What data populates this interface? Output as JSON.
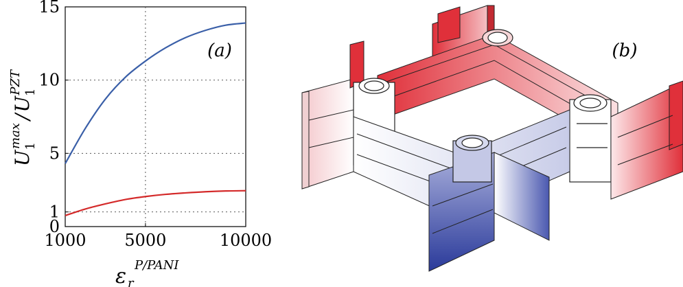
{
  "chart_data": {
    "type": "line",
    "panel_label": "(a)",
    "ylabel": {
      "base": "U",
      "base_sub": "1",
      "base_sup": "max",
      "slash": "/",
      "ref": "U",
      "ref_sub": "1",
      "ref_sup": "PZT"
    },
    "xlabel": {
      "base": "ε",
      "sub": "r",
      "sup": "P/PANI"
    },
    "xlim": [
      1000,
      10000
    ],
    "ylim": [
      0,
      15
    ],
    "xticks": [
      1000,
      5000,
      10000
    ],
    "yticks": [
      0,
      1,
      5,
      10,
      15
    ],
    "grid": true,
    "series": [
      {
        "color": "#3a5fa8",
        "x": [
          1000,
          2000,
          3000,
          4000,
          5000,
          6000,
          7000,
          8000,
          9000,
          10000
        ],
        "y": [
          4.3,
          6.7,
          8.7,
          10.2,
          11.3,
          12.2,
          12.9,
          13.4,
          13.75,
          13.9
        ]
      },
      {
        "color": "#d42a2a",
        "x": [
          1000,
          2000,
          3000,
          4000,
          5000,
          6000,
          7000,
          8000,
          9000,
          10000
        ],
        "y": [
          0.75,
          1.2,
          1.55,
          1.85,
          2.05,
          2.2,
          2.3,
          2.38,
          2.43,
          2.45
        ]
      }
    ]
  },
  "figure_b": {
    "panel_label": "(b)",
    "colors": {
      "positive": "#e0303a",
      "negative": "#2a3a9a",
      "neutral": "#ffffff",
      "edge": "#222222"
    }
  }
}
